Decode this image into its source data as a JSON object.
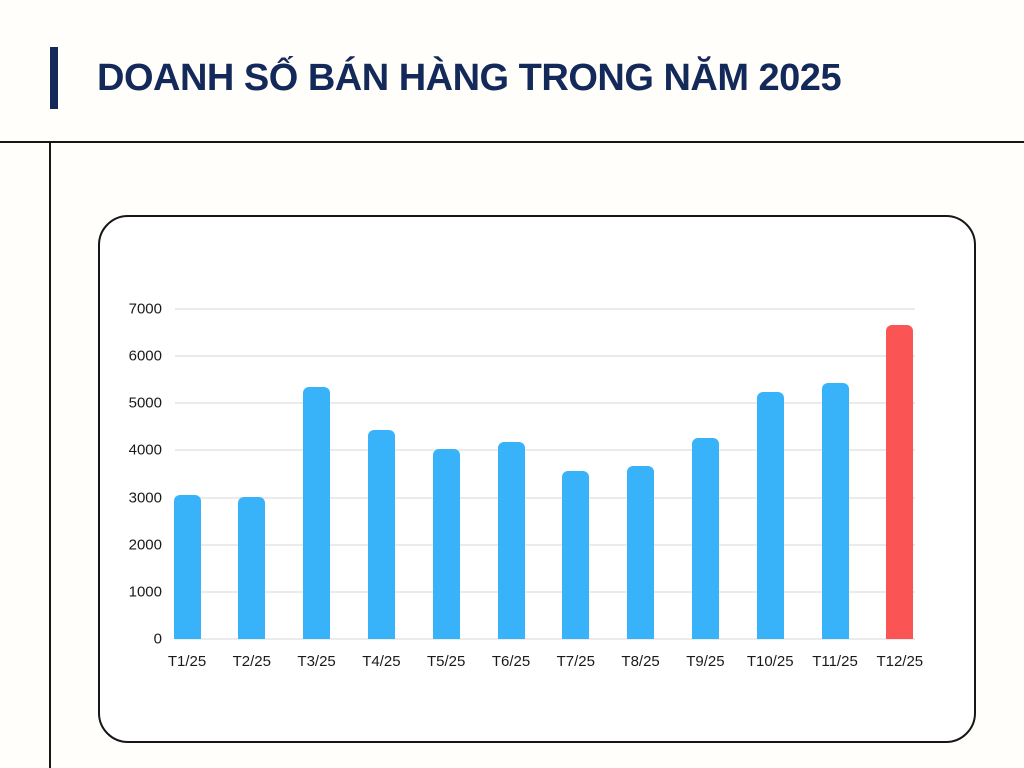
{
  "header": {
    "title": "DOANH SỐ BÁN HÀNG TRONG NĂM 2025"
  },
  "chart_data": {
    "type": "bar",
    "title": "DOANH SỐ BÁN HÀNG TRONG NĂM 2025",
    "categories": [
      "T1/25",
      "T2/25",
      "T3/25",
      "T4/25",
      "T5/25",
      "T6/25",
      "T7/25",
      "T8/25",
      "T9/25",
      "T10/25",
      "T11/25",
      "T12/25"
    ],
    "values": [
      3050,
      3010,
      5350,
      4440,
      4030,
      4180,
      3570,
      3670,
      4270,
      5230,
      5440,
      6670
    ],
    "ylim": [
      0,
      7000
    ],
    "yticks": [
      0,
      1000,
      2000,
      3000,
      4000,
      5000,
      6000,
      7000
    ],
    "grid": true,
    "legend_position": "none",
    "xlabel": "",
    "ylabel": "",
    "bar_color": "#38B3F9",
    "highlight_index": 11,
    "highlight_color": "#FB5455"
  },
  "colors": {
    "page_background": "#FFFEFB",
    "title_navy": "#13295A",
    "divider": "#161616",
    "card_border": "#161616",
    "card_background": "#FFFFFF",
    "gridline": "#EBEBEB",
    "axis_text": "#1A1A1A"
  }
}
